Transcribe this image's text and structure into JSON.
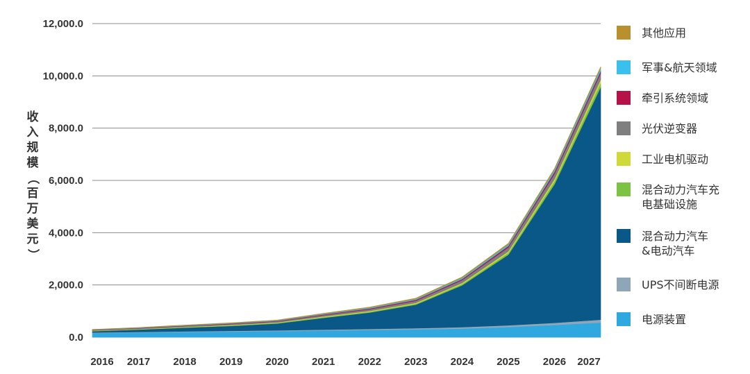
{
  "chart_data": {
    "type": "area",
    "stacked": true,
    "title": "",
    "xlabel": "",
    "ylabel": "收入规模（百万美元）",
    "ylim": [
      0,
      12000
    ],
    "yticks": [
      "0.0",
      "2,000.0",
      "4,000.0",
      "6,000.0",
      "8,000.0",
      "10,000.0",
      "12,000.0"
    ],
    "categories": [
      "2016",
      "2017",
      "2018",
      "2019",
      "2020",
      "2021",
      "2022",
      "2023",
      "2024",
      "2025",
      "2026",
      "2027"
    ],
    "grid": true,
    "legend_position": "right",
    "series": [
      {
        "name": "电源装置",
        "color": "#2fa8e0",
        "values": [
          160,
          180,
          200,
          215,
          235,
          255,
          275,
          300,
          330,
          390,
          470,
          560
        ]
      },
      {
        "name": "UPS不间断电源",
        "color": "#8ea6b8",
        "values": [
          20,
          22,
          25,
          27,
          30,
          35,
          40,
          45,
          55,
          65,
          80,
          110
        ]
      },
      {
        "name": "混合动力汽车\n&电动汽车",
        "color": "#0a5888",
        "values": [
          50,
          90,
          140,
          190,
          260,
          450,
          630,
          900,
          1600,
          2700,
          5300,
          8900
        ]
      },
      {
        "name": "混合动力汽车充\n电基础设施",
        "color": "#7cc243",
        "values": [
          10,
          12,
          15,
          18,
          20,
          25,
          30,
          35,
          45,
          70,
          110,
          160
        ]
      },
      {
        "name": "工业电机驱动",
        "color": "#cfd93a",
        "values": [
          10,
          12,
          15,
          18,
          20,
          25,
          30,
          35,
          45,
          60,
          90,
          130
        ]
      },
      {
        "name": "光伏逆变器",
        "color": "#7f7f7f",
        "values": [
          20,
          25,
          30,
          35,
          40,
          55,
          65,
          80,
          110,
          150,
          200,
          240
        ]
      },
      {
        "name": "牵引系统领域",
        "color": "#b5124a",
        "values": [
          10,
          12,
          15,
          18,
          20,
          25,
          30,
          35,
          40,
          55,
          75,
          90
        ]
      },
      {
        "name": "军事&航天领域",
        "color": "#39c0ec",
        "values": [
          10,
          12,
          15,
          18,
          20,
          25,
          30,
          35,
          45,
          60,
          80,
          100
        ]
      },
      {
        "name": "其他应用",
        "color": "#b8902e",
        "values": [
          10,
          10,
          12,
          14,
          15,
          20,
          25,
          30,
          35,
          40,
          50,
          60
        ]
      }
    ]
  },
  "legend_order": [
    8,
    7,
    6,
    5,
    4,
    3,
    2,
    1,
    0
  ],
  "y_title": {
    "chars": [
      "收",
      "入",
      "规",
      "模"
    ],
    "paren_open": "（",
    "chars2": [
      "百",
      "万",
      "美",
      "元"
    ],
    "paren_close": "）"
  }
}
